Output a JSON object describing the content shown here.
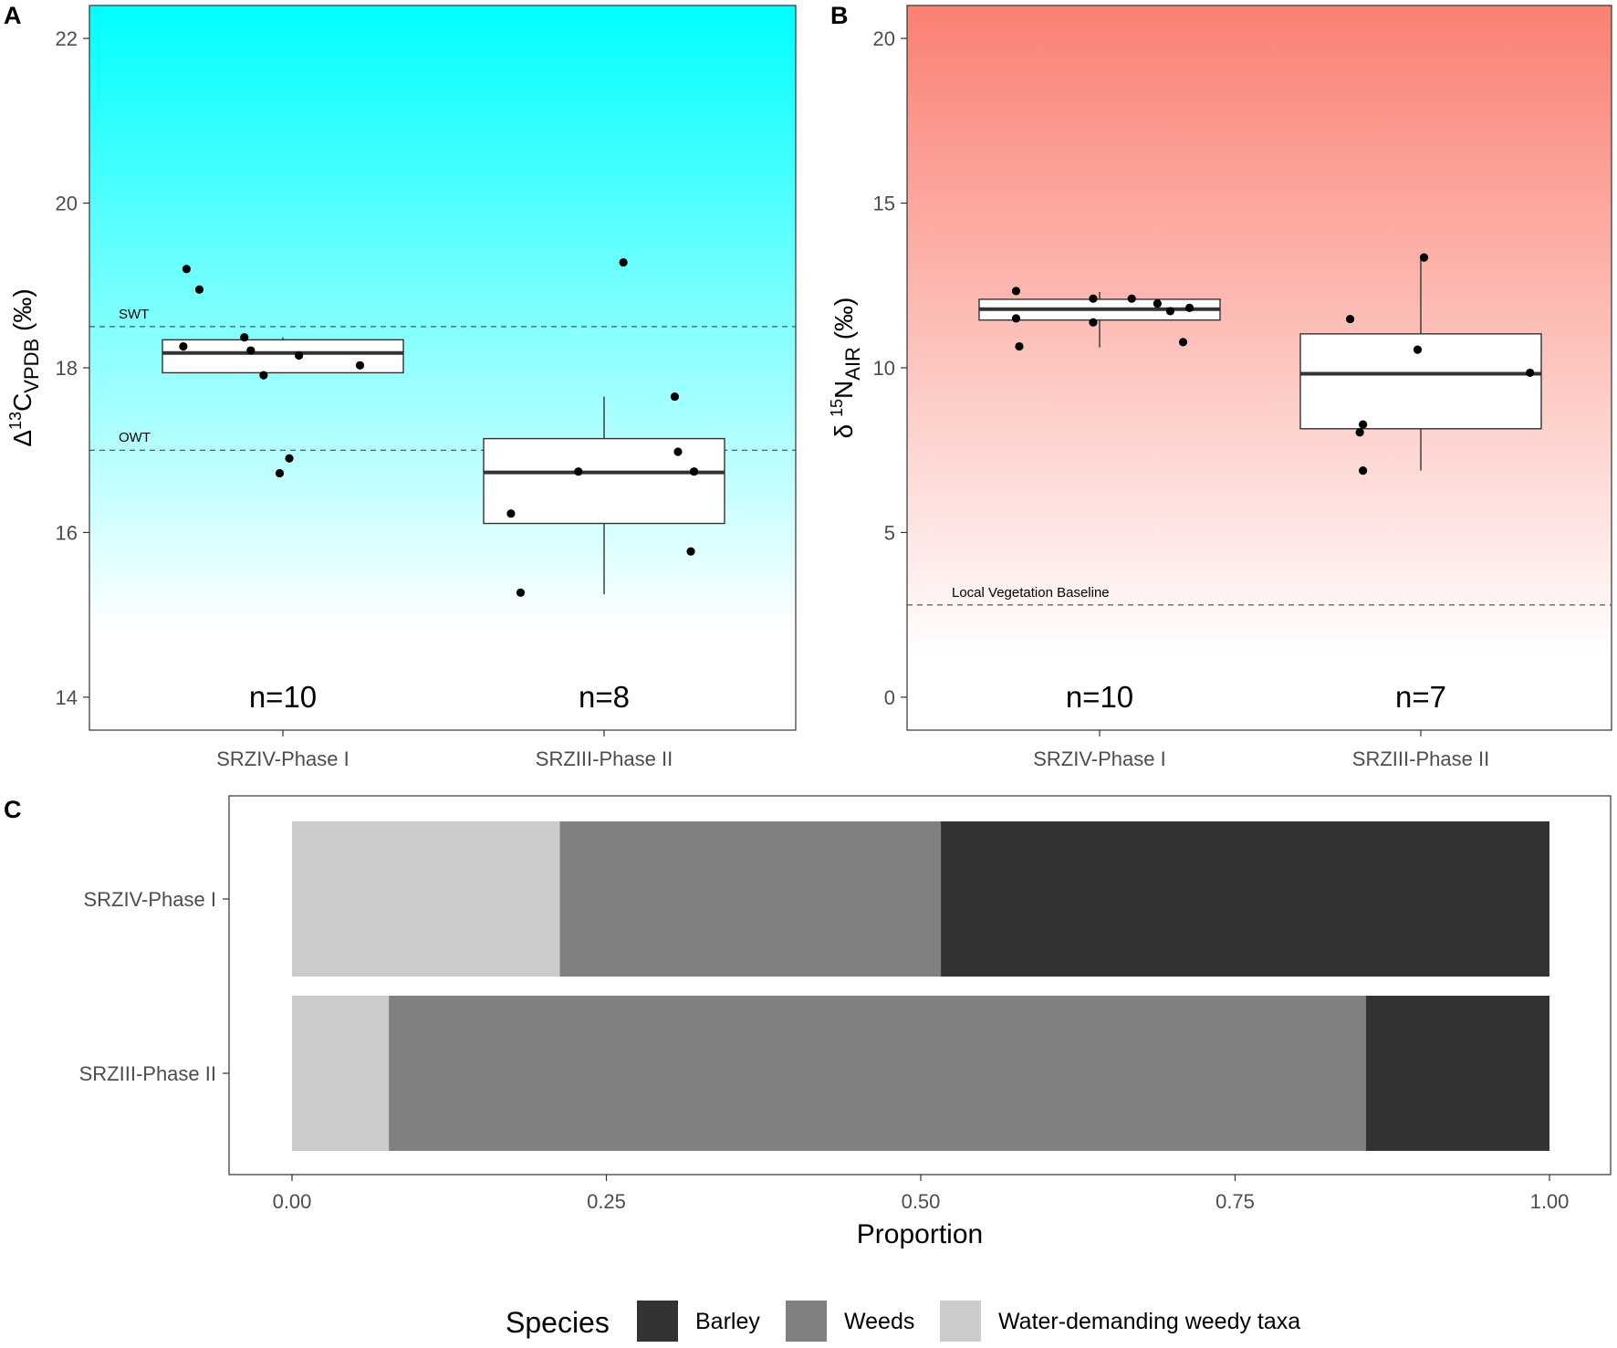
{
  "chart_data": [
    {
      "panel": "A",
      "type": "box",
      "ylabel_prefix": "Δ",
      "ylabel_sup": "13",
      "ylabel_main": "C",
      "ylabel_sub": "VPDB",
      "ylabel_suffix": " (‰)",
      "ylim": [
        13.6,
        22.4
      ],
      "yticks": [
        "14",
        "16",
        "18",
        "20",
        "22"
      ],
      "ytick_values": [
        14,
        16,
        18,
        20,
        22
      ],
      "background_gradient": [
        "#00ffff",
        "#ffffff"
      ],
      "categories": [
        "SRZIV-Phase I",
        "SRZIII-Phase II"
      ],
      "counts": [
        "n=10",
        "n=8"
      ],
      "reference_lines": [
        {
          "label": "SWT",
          "value": 18.5
        },
        {
          "label": "OWT",
          "value": 17.0
        }
      ],
      "boxes": [
        {
          "q1": 17.94,
          "median": 18.18,
          "q3": 18.34,
          "whisker_low": 17.94,
          "whisker_high": 18.37
        },
        {
          "q1": 16.11,
          "median": 16.73,
          "q3": 17.14,
          "whisker_low": 15.25,
          "whisker_high": 17.65
        }
      ],
      "points": [
        [
          [
            -0.3,
            19.2
          ],
          [
            -0.26,
            18.95
          ],
          [
            -0.31,
            18.26
          ],
          [
            -0.12,
            18.37
          ],
          [
            -0.1,
            18.21
          ],
          [
            0.05,
            18.15
          ],
          [
            0.24,
            18.03
          ],
          [
            -0.06,
            17.91
          ],
          [
            0.02,
            16.9
          ],
          [
            -0.01,
            16.72
          ]
        ],
        [
          [
            0.06,
            19.28
          ],
          [
            0.22,
            17.65
          ],
          [
            0.23,
            16.98
          ],
          [
            -0.08,
            16.74
          ],
          [
            0.28,
            16.74
          ],
          [
            -0.29,
            16.23
          ],
          [
            0.27,
            15.77
          ],
          [
            -0.26,
            15.27
          ]
        ]
      ]
    },
    {
      "panel": "B",
      "type": "box",
      "ylabel_prefix": "δ ",
      "ylabel_sup": "15",
      "ylabel_main": "N",
      "ylabel_sub": "AIR",
      "ylabel_suffix": " (‰)",
      "ylim": [
        -1.0,
        21.0
      ],
      "yticks": [
        "0",
        "5",
        "10",
        "15",
        "20"
      ],
      "ytick_values": [
        0,
        5,
        10,
        15,
        20
      ],
      "background_gradient": [
        "#fa8072",
        "#ffffff"
      ],
      "categories": [
        "SRZIV-Phase I",
        "SRZIII-Phase II"
      ],
      "counts": [
        "n=10",
        "n=7"
      ],
      "reference_lines": [
        {
          "label": "Local Vegetation Baseline",
          "value": 2.8
        }
      ],
      "boxes": [
        {
          "q1": 11.45,
          "median": 11.78,
          "q3": 12.08,
          "whisker_low": 10.62,
          "whisker_high": 12.3
        },
        {
          "q1": 8.15,
          "median": 9.82,
          "q3": 11.03,
          "whisker_low": 6.88,
          "whisker_high": 13.3
        }
      ],
      "points": [
        [
          [
            -0.26,
            12.33
          ],
          [
            -0.02,
            12.1
          ],
          [
            0.1,
            12.1
          ],
          [
            0.18,
            11.95
          ],
          [
            0.28,
            11.82
          ],
          [
            0.22,
            11.72
          ],
          [
            -0.26,
            11.5
          ],
          [
            -0.02,
            11.38
          ],
          [
            -0.25,
            10.65
          ],
          [
            0.26,
            10.78
          ]
        ],
        [
          [
            0.01,
            13.35
          ],
          [
            -0.22,
            11.48
          ],
          [
            -0.01,
            10.55
          ],
          [
            0.34,
            9.85
          ],
          [
            -0.18,
            8.28
          ],
          [
            -0.19,
            8.04
          ],
          [
            -0.18,
            6.88
          ]
        ]
      ]
    },
    {
      "panel": "C",
      "type": "bar",
      "orientation": "horizontal",
      "stacked": true,
      "xlabel": "Proportion",
      "xlim": [
        0,
        1
      ],
      "xticks": [
        "0.00",
        "0.25",
        "0.50",
        "0.75",
        "1.00"
      ],
      "xtick_values": [
        0,
        0.25,
        0.5,
        0.75,
        1.0
      ],
      "categories": [
        "SRZIV-Phase I",
        "SRZIII-Phase II"
      ],
      "legend_title": "Species",
      "legend_position": "bottom",
      "series": [
        {
          "name": "Water-demanding weedy taxa",
          "color": "#cccccc",
          "values": [
            0.213,
            0.077
          ]
        },
        {
          "name": "Weeds",
          "color": "#808080",
          "values": [
            0.303,
            0.777
          ]
        },
        {
          "name": "Barley",
          "color": "#333333",
          "values": [
            0.484,
            0.146
          ]
        }
      ],
      "legend_order": [
        "Barley",
        "Weeds",
        "Water-demanding weedy taxa"
      ]
    }
  ]
}
